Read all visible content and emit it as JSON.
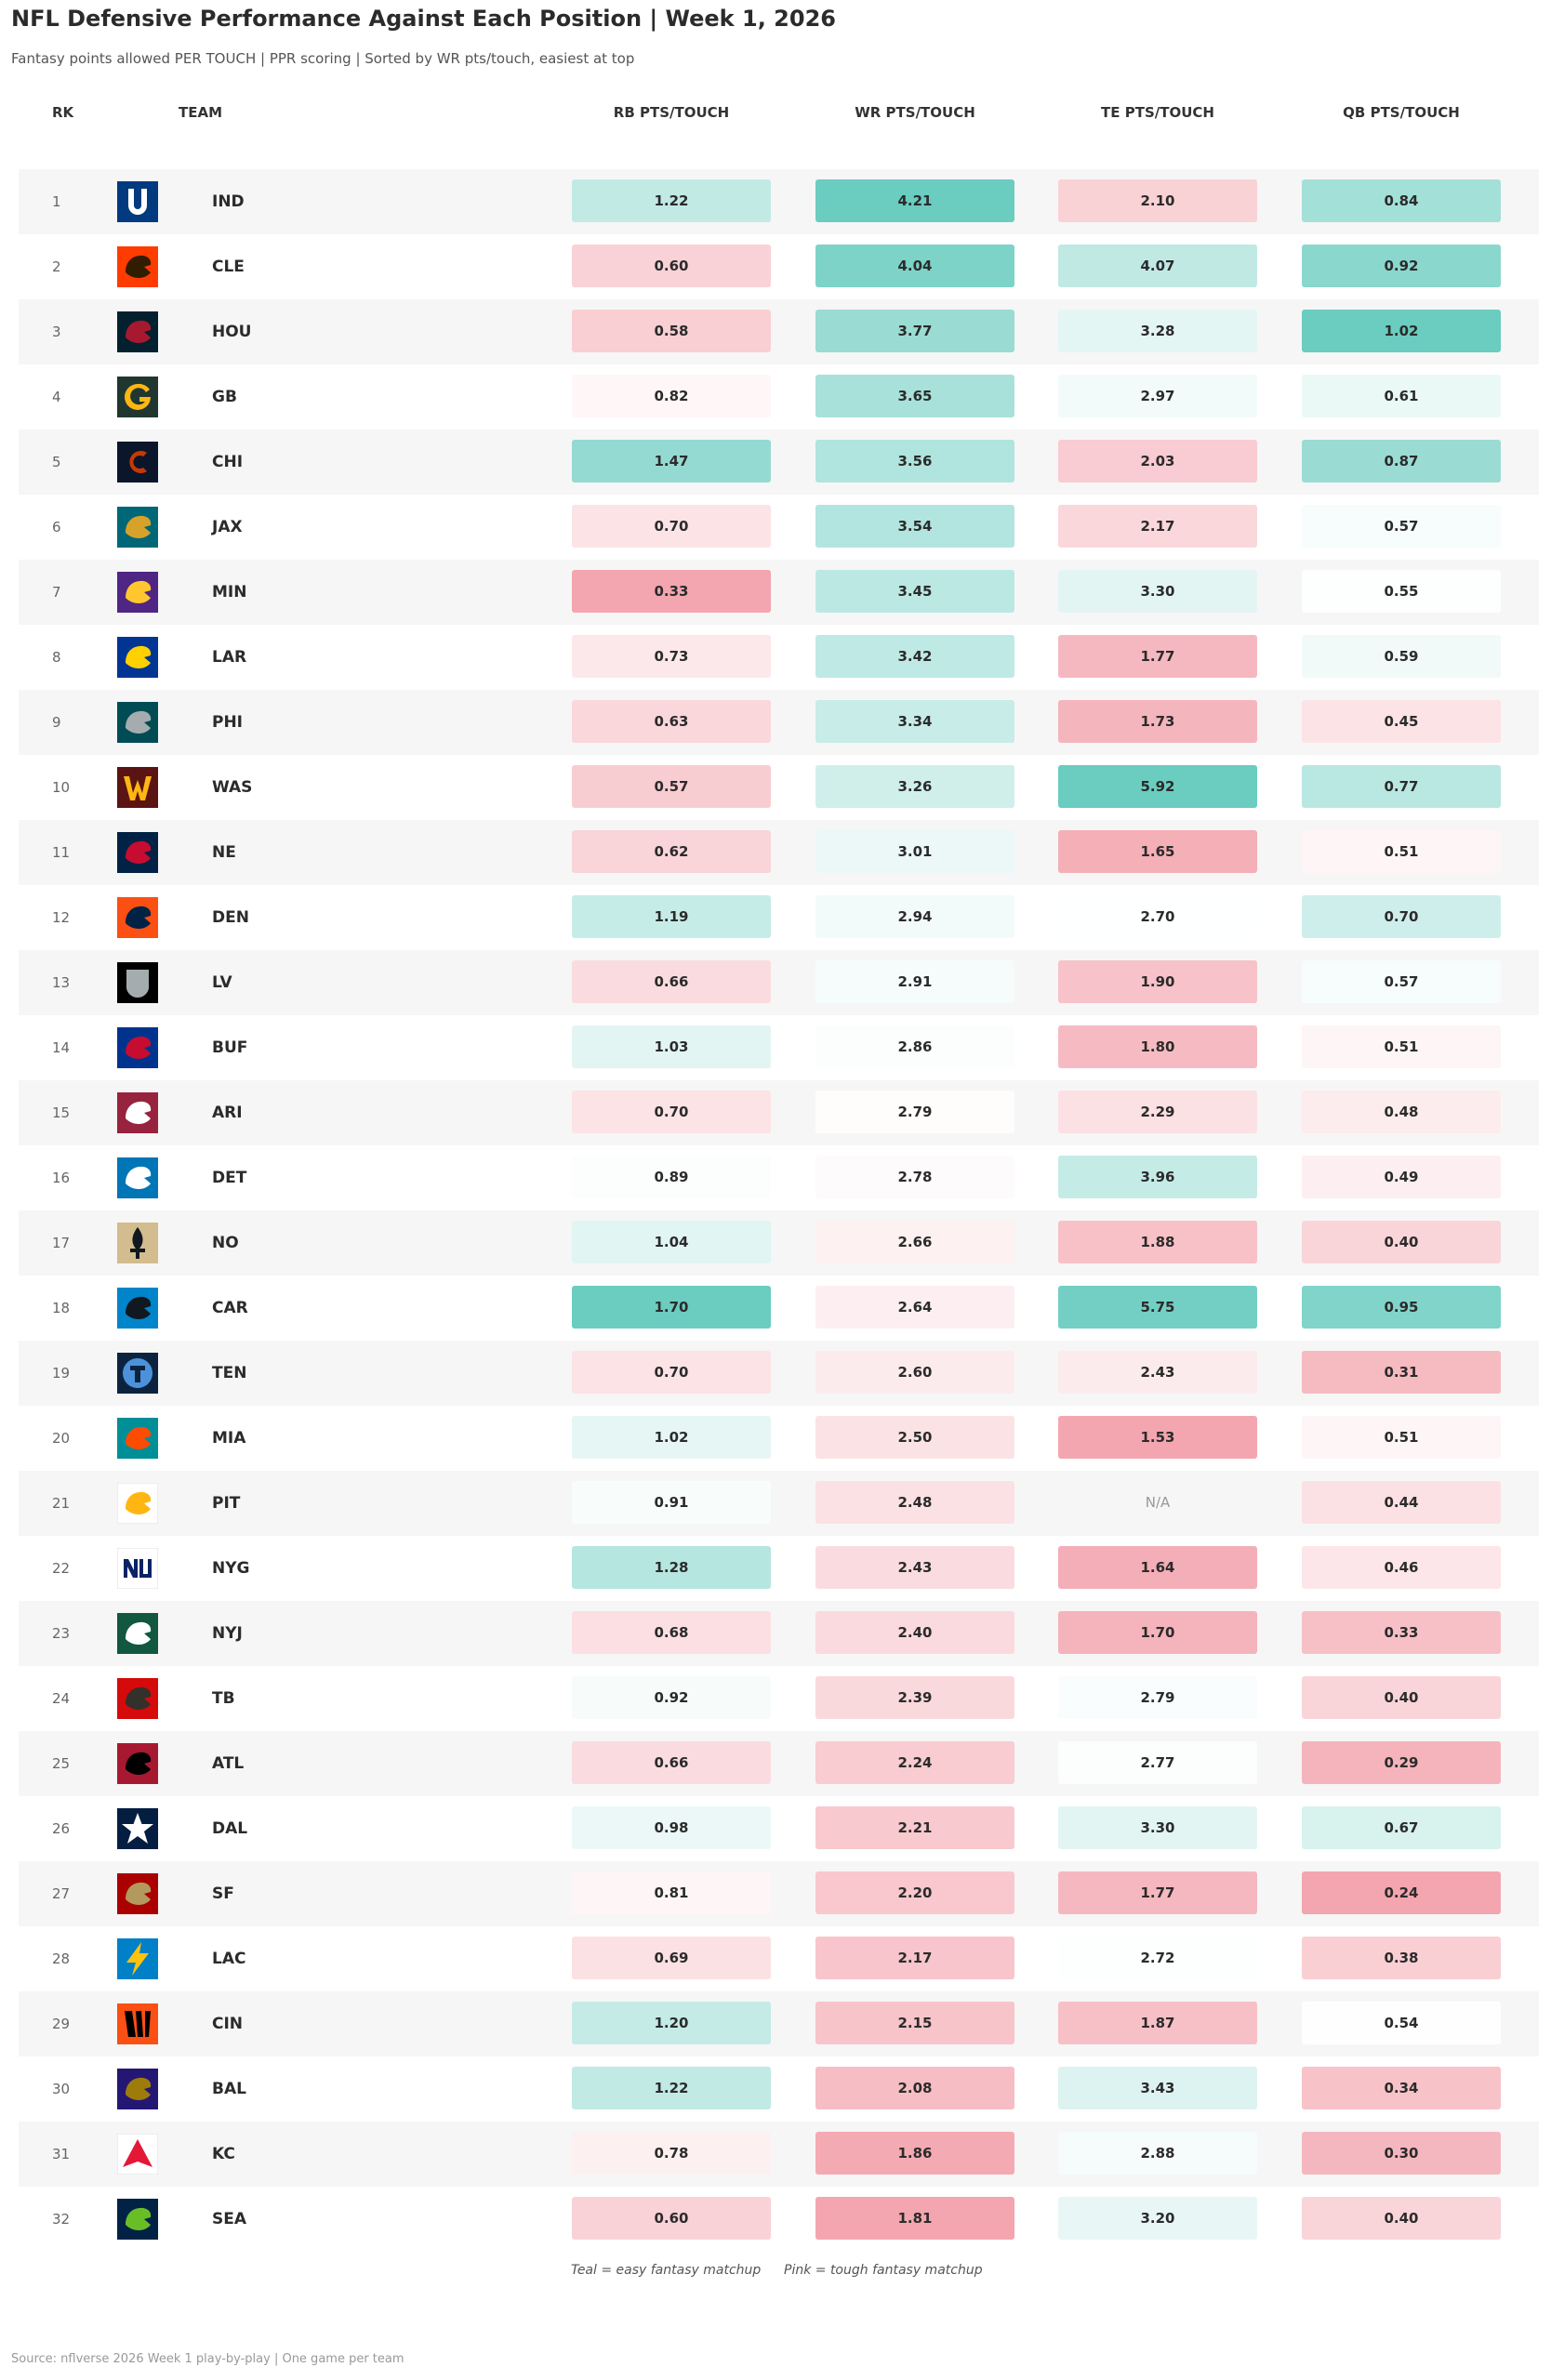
{
  "header": {
    "title": "NFL Defensive Performance Against Each Position | Week 1, 2026",
    "subtitle": "Fantasy points allowed PER TOUCH | PPR scoring | Sorted by WR pts/touch, easiest at top",
    "columns": {
      "rk": "RK",
      "team": "TEAM",
      "rb": "RB PTS/TOUCH",
      "wr": "WR PTS/TOUCH",
      "te": "TE PTS/TOUCH",
      "qb": "QB PTS/TOUCH"
    }
  },
  "legend": {
    "teal": "Teal = easy fantasy matchup",
    "pink": "Pink = tough fantasy matchup"
  },
  "footer": {
    "source": "Source: nflverse 2026 Week 1 play-by-play  |  One game per team"
  },
  "colors": {
    "teal": "#5ec8bb",
    "pink": "#f29ea8",
    "row_alt": "#f6f6f6"
  },
  "chart_data": {
    "type": "table",
    "columns": [
      "RK",
      "TEAM",
      "RB PTS/TOUCH",
      "WR PTS/TOUCH",
      "TE PTS/TOUCH",
      "QB PTS/TOUCH"
    ],
    "na_label": "N/A",
    "rows": [
      {
        "rk": "1",
        "team": "IND",
        "rb": 1.22,
        "wr": 4.21,
        "te": 2.1,
        "qb": 0.84,
        "logo": {
          "c1": "#013A7F",
          "c2": "#FFFFFF",
          "icon": "horseshoe"
        }
      },
      {
        "rk": "2",
        "team": "CLE",
        "rb": 0.6,
        "wr": 4.04,
        "te": 4.07,
        "qb": 0.92,
        "logo": {
          "c1": "#FF3C00",
          "c2": "#311D00",
          "icon": "helmet"
        }
      },
      {
        "rk": "3",
        "team": "HOU",
        "rb": 0.58,
        "wr": 3.77,
        "te": 3.28,
        "qb": 1.02,
        "logo": {
          "c1": "#03202F",
          "c2": "#A71930",
          "icon": "bull"
        }
      },
      {
        "rk": "4",
        "team": "GB",
        "rb": 0.82,
        "wr": 3.65,
        "te": 2.97,
        "qb": 0.61,
        "logo": {
          "c1": "#203731",
          "c2": "#FFB612",
          "icon": "g-oval"
        }
      },
      {
        "rk": "5",
        "team": "CHI",
        "rb": 1.47,
        "wr": 3.56,
        "te": 2.03,
        "qb": 0.87,
        "logo": {
          "c1": "#0B162A",
          "c2": "#C83803",
          "icon": "c-letter"
        }
      },
      {
        "rk": "6",
        "team": "JAX",
        "rb": 0.7,
        "wr": 3.54,
        "te": 2.17,
        "qb": 0.57,
        "logo": {
          "c1": "#006778",
          "c2": "#D7A22A",
          "icon": "jaguar"
        }
      },
      {
        "rk": "7",
        "team": "MIN",
        "rb": 0.33,
        "wr": 3.45,
        "te": 3.3,
        "qb": 0.55,
        "logo": {
          "c1": "#4F2683",
          "c2": "#FFC62F",
          "icon": "viking"
        }
      },
      {
        "rk": "8",
        "team": "LAR",
        "rb": 0.73,
        "wr": 3.42,
        "te": 1.77,
        "qb": 0.59,
        "logo": {
          "c1": "#003594",
          "c2": "#FFD100",
          "icon": "ram-horn"
        }
      },
      {
        "rk": "9",
        "team": "PHI",
        "rb": 0.63,
        "wr": 3.34,
        "te": 1.73,
        "qb": 0.45,
        "logo": {
          "c1": "#004C54",
          "c2": "#A5ACAF",
          "icon": "eagle"
        }
      },
      {
        "rk": "10",
        "team": "WAS",
        "rb": 0.57,
        "wr": 3.26,
        "te": 5.92,
        "qb": 0.77,
        "logo": {
          "c1": "#5A1414",
          "c2": "#FFB612",
          "icon": "w-letter"
        }
      },
      {
        "rk": "11",
        "team": "NE",
        "rb": 0.62,
        "wr": 3.01,
        "te": 1.65,
        "qb": 0.51,
        "logo": {
          "c1": "#002244",
          "c2": "#C60C30",
          "icon": "flying-elvis"
        }
      },
      {
        "rk": "12",
        "team": "DEN",
        "rb": 1.19,
        "wr": 2.94,
        "te": 2.7,
        "qb": 0.7,
        "logo": {
          "c1": "#FB4F14",
          "c2": "#002244",
          "icon": "bronco"
        }
      },
      {
        "rk": "13",
        "team": "LV",
        "rb": 0.66,
        "wr": 2.91,
        "te": 1.9,
        "qb": 0.57,
        "logo": {
          "c1": "#000000",
          "c2": "#A5ACAF",
          "icon": "shield"
        }
      },
      {
        "rk": "14",
        "team": "BUF",
        "rb": 1.03,
        "wr": 2.86,
        "te": 1.8,
        "qb": 0.51,
        "logo": {
          "c1": "#00338D",
          "c2": "#C60C30",
          "icon": "bison"
        }
      },
      {
        "rk": "15",
        "team": "ARI",
        "rb": 0.7,
        "wr": 2.79,
        "te": 2.29,
        "qb": 0.48,
        "logo": {
          "c1": "#97233F",
          "c2": "#FFFFFF",
          "icon": "cardinal"
        }
      },
      {
        "rk": "16",
        "team": "DET",
        "rb": 0.89,
        "wr": 2.78,
        "te": 3.96,
        "qb": 0.49,
        "logo": {
          "c1": "#0076B6",
          "c2": "#FFFFFF",
          "icon": "lion"
        }
      },
      {
        "rk": "17",
        "team": "NO",
        "rb": 1.04,
        "wr": 2.66,
        "te": 1.88,
        "qb": 0.4,
        "logo": {
          "c1": "#D3BC8D",
          "c2": "#101820",
          "icon": "fleur-de-lis"
        }
      },
      {
        "rk": "18",
        "team": "CAR",
        "rb": 1.7,
        "wr": 2.64,
        "te": 5.75,
        "qb": 0.95,
        "logo": {
          "c1": "#0085CA",
          "c2": "#101820",
          "icon": "panther"
        }
      },
      {
        "rk": "19",
        "team": "TEN",
        "rb": 0.7,
        "wr": 2.6,
        "te": 2.43,
        "qb": 0.31,
        "logo": {
          "c1": "#0C2340",
          "c2": "#4B92DB",
          "icon": "t-circle"
        }
      },
      {
        "rk": "20",
        "team": "MIA",
        "rb": 1.02,
        "wr": 2.5,
        "te": 1.53,
        "qb": 0.51,
        "logo": {
          "c1": "#008E97",
          "c2": "#FC4C02",
          "icon": "dolphin"
        }
      },
      {
        "rk": "21",
        "team": "PIT",
        "rb": 0.91,
        "wr": 2.48,
        "te": null,
        "qb": 0.44,
        "logo": {
          "c1": "#FFFFFF",
          "c2": "#FFB612",
          "icon": "steelmark"
        }
      },
      {
        "rk": "22",
        "team": "NYG",
        "rb": 1.28,
        "wr": 2.43,
        "te": 1.64,
        "qb": 0.46,
        "logo": {
          "c1": "#FFFFFF",
          "c2": "#0B2265",
          "icon": "ny-letters"
        }
      },
      {
        "rk": "23",
        "team": "NYJ",
        "rb": 0.68,
        "wr": 2.4,
        "te": 1.7,
        "qb": 0.33,
        "logo": {
          "c1": "#125740",
          "c2": "#FFFFFF",
          "icon": "jet"
        }
      },
      {
        "rk": "24",
        "team": "TB",
        "rb": 0.92,
        "wr": 2.39,
        "te": 2.79,
        "qb": 0.4,
        "logo": {
          "c1": "#D50A0A",
          "c2": "#34302B",
          "icon": "flag"
        }
      },
      {
        "rk": "25",
        "team": "ATL",
        "rb": 0.66,
        "wr": 2.24,
        "te": 2.77,
        "qb": 0.29,
        "logo": {
          "c1": "#A71930",
          "c2": "#000000",
          "icon": "falcon"
        }
      },
      {
        "rk": "26",
        "team": "DAL",
        "rb": 0.98,
        "wr": 2.21,
        "te": 3.3,
        "qb": 0.67,
        "logo": {
          "c1": "#041E42",
          "c2": "#FFFFFF",
          "icon": "star"
        }
      },
      {
        "rk": "27",
        "team": "SF",
        "rb": 0.81,
        "wr": 2.2,
        "te": 1.77,
        "qb": 0.24,
        "logo": {
          "c1": "#AA0000",
          "c2": "#B3995D",
          "icon": "sf-oval"
        }
      },
      {
        "rk": "28",
        "team": "LAC",
        "rb": 0.69,
        "wr": 2.17,
        "te": 2.72,
        "qb": 0.38,
        "logo": {
          "c1": "#0080C6",
          "c2": "#FFC20E",
          "icon": "bolt"
        }
      },
      {
        "rk": "29",
        "team": "CIN",
        "rb": 1.2,
        "wr": 2.15,
        "te": 1.87,
        "qb": 0.54,
        "logo": {
          "c1": "#FB4F14",
          "c2": "#000000",
          "icon": "stripes"
        }
      },
      {
        "rk": "30",
        "team": "BAL",
        "rb": 1.22,
        "wr": 2.08,
        "te": 3.43,
        "qb": 0.34,
        "logo": {
          "c1": "#241773",
          "c2": "#9E7C0C",
          "icon": "raven"
        }
      },
      {
        "rk": "31",
        "team": "KC",
        "rb": 0.78,
        "wr": 1.86,
        "te": 2.88,
        "qb": 0.3,
        "logo": {
          "c1": "#FFFFFF",
          "c2": "#E31837",
          "icon": "arrowhead"
        }
      },
      {
        "rk": "32",
        "team": "SEA",
        "rb": 0.6,
        "wr": 1.81,
        "te": 3.2,
        "qb": 0.4,
        "logo": {
          "c1": "#002244",
          "c2": "#69BE28",
          "icon": "seahawk"
        }
      }
    ]
  }
}
